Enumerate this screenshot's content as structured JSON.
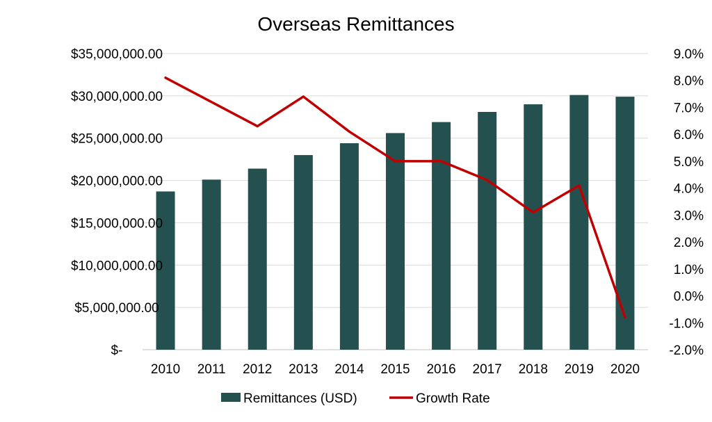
{
  "chart_data": {
    "type": "bar",
    "title": "Overseas Remittances",
    "categories": [
      "2010",
      "2011",
      "2012",
      "2013",
      "2014",
      "2015",
      "2016",
      "2017",
      "2018",
      "2019",
      "2020"
    ],
    "series": [
      {
        "name": "Remittances (USD)",
        "type": "bar",
        "axis": "left",
        "color": "#24514f",
        "values": [
          18700000,
          20100000,
          21400000,
          23000000,
          24400000,
          25600000,
          26900000,
          28100000,
          29000000,
          30100000,
          29900000
        ]
      },
      {
        "name": "Growth Rate",
        "type": "line",
        "axis": "right",
        "color": "#c00000",
        "values": [
          8.1,
          7.2,
          6.3,
          7.4,
          6.1,
          5.0,
          5.0,
          4.3,
          3.1,
          4.1,
          -0.8
        ]
      }
    ],
    "y_left": {
      "min": 0,
      "max": 35000000,
      "ticks": [
        0,
        5000000,
        10000000,
        15000000,
        20000000,
        25000000,
        30000000,
        35000000
      ],
      "tick_labels": [
        "$-",
        "$5,000,000.00",
        "$10,000,000.00",
        "$15,000,000.00",
        "$20,000,000.00",
        "$25,000,000.00",
        "$30,000,000.00",
        "$35,000,000.00"
      ]
    },
    "y_right": {
      "min": -2,
      "max": 9,
      "ticks": [
        -2,
        -1,
        0,
        1,
        2,
        3,
        4,
        5,
        6,
        7,
        8,
        9
      ],
      "tick_labels": [
        "-2.0%",
        "-1.0%",
        "0.0%",
        "1.0%",
        "2.0%",
        "3.0%",
        "4.0%",
        "5.0%",
        "6.0%",
        "7.0%",
        "8.0%",
        "9.0%"
      ]
    },
    "grid": true,
    "legend_position": "bottom"
  }
}
